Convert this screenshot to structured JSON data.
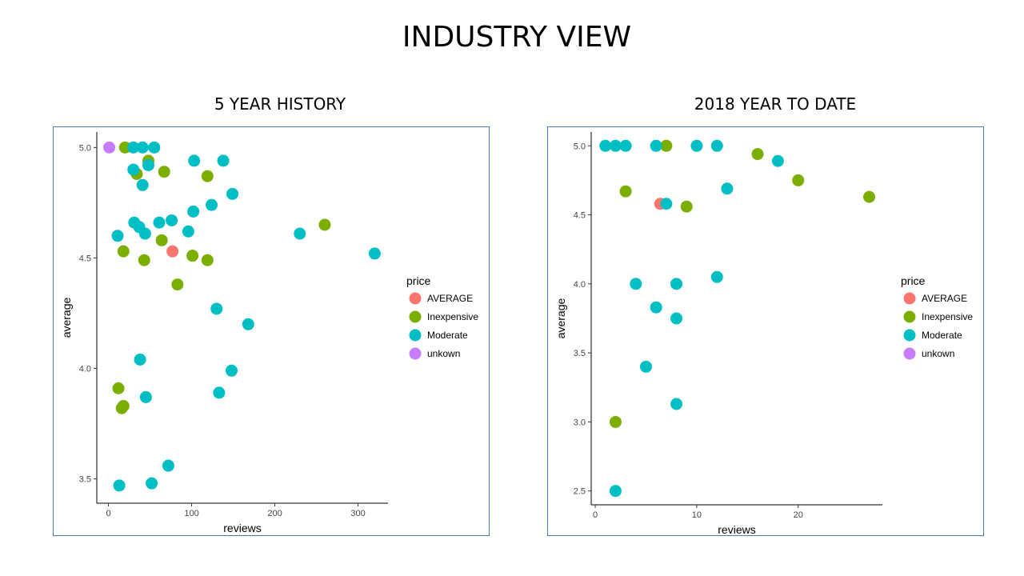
{
  "page": {
    "title": "INDUSTRY VIEW"
  },
  "colors": {
    "AVERAGE": "#f8766d",
    "Inexpensive": "#7cae00",
    "Moderate": "#00bfc4",
    "unkown": "#c77cff"
  },
  "chart_data": [
    {
      "type": "scatter",
      "title": "5 YEAR HISTORY",
      "xlabel": "reviews",
      "ylabel": "average",
      "xlim": [
        -14,
        336
      ],
      "ylim": [
        3.39,
        5.07
      ],
      "xticks": [
        "0",
        "100",
        "200",
        "300"
      ],
      "xtick_values": [
        0,
        100,
        200,
        300
      ],
      "yticks": [
        "3.5",
        "4.0",
        "4.5",
        "5.0"
      ],
      "ytick_values": [
        3.5,
        4.0,
        4.5,
        5.0
      ],
      "grid": false,
      "legend": {
        "title": "price",
        "position": "right",
        "entries": [
          "AVERAGE",
          "Inexpensive",
          "Moderate",
          "unkown"
        ]
      },
      "series": [
        {
          "name": "AVERAGE",
          "points": [
            [
              77,
              4.53
            ]
          ]
        },
        {
          "name": "Inexpensive",
          "points": [
            [
              20,
              5.0
            ],
            [
              48,
              4.94
            ],
            [
              34,
              4.88
            ],
            [
              67,
              4.89
            ],
            [
              119,
              4.87
            ],
            [
              260,
              4.65
            ],
            [
              64,
              4.58
            ],
            [
              18,
              4.53
            ],
            [
              43,
              4.49
            ],
            [
              101,
              4.51
            ],
            [
              119,
              4.49
            ],
            [
              83,
              4.38
            ],
            [
              12,
              3.91
            ],
            [
              18,
              3.83
            ],
            [
              16,
              3.82
            ]
          ]
        },
        {
          "name": "Moderate",
          "points": [
            [
              30,
              5.0
            ],
            [
              41,
              5.0
            ],
            [
              55,
              5.0
            ],
            [
              30,
              4.9
            ],
            [
              48,
              4.92
            ],
            [
              103,
              4.94
            ],
            [
              138,
              4.94
            ],
            [
              41,
              4.83
            ],
            [
              149,
              4.79
            ],
            [
              124,
              4.74
            ],
            [
              102,
              4.71
            ],
            [
              31,
              4.66
            ],
            [
              61,
              4.66
            ],
            [
              76,
              4.67
            ],
            [
              37,
              4.64
            ],
            [
              44,
              4.61
            ],
            [
              96,
              4.62
            ],
            [
              11,
              4.6
            ],
            [
              230,
              4.61
            ],
            [
              320,
              4.52
            ],
            [
              130,
              4.27
            ],
            [
              168,
              4.2
            ],
            [
              38,
              4.04
            ],
            [
              148,
              3.99
            ],
            [
              133,
              3.89
            ],
            [
              45,
              3.87
            ],
            [
              72,
              3.56
            ],
            [
              13,
              3.47
            ],
            [
              52,
              3.48
            ]
          ]
        },
        {
          "name": "unkown",
          "points": [
            [
              1,
              5.0
            ]
          ]
        }
      ]
    },
    {
      "type": "scatter",
      "title": "2018 YEAR TO DATE",
      "xlabel": "reviews",
      "ylabel": "average",
      "xlim": [
        -0.4,
        28.3
      ],
      "ylim": [
        2.4,
        5.1
      ],
      "xticks": [
        "0",
        "10",
        "20"
      ],
      "xtick_values": [
        0,
        10,
        20
      ],
      "yticks": [
        "2.5",
        "3.0",
        "3.5",
        "4.0",
        "4.5",
        "5.0"
      ],
      "ytick_values": [
        2.5,
        3.0,
        3.5,
        4.0,
        4.5,
        5.0
      ],
      "grid": false,
      "legend": {
        "title": "price",
        "position": "right",
        "entries": [
          "AVERAGE",
          "Inexpensive",
          "Moderate",
          "unkown"
        ]
      },
      "series": [
        {
          "name": "AVERAGE",
          "points": [
            [
              6.4,
              4.58
            ]
          ]
        },
        {
          "name": "Inexpensive",
          "points": [
            [
              7,
              5.0
            ],
            [
              16,
              4.94
            ],
            [
              20,
              4.75
            ],
            [
              27,
              4.63
            ],
            [
              3,
              4.67
            ],
            [
              9,
              4.56
            ],
            [
              2,
              3.0
            ]
          ]
        },
        {
          "name": "Moderate",
          "points": [
            [
              1,
              5.0
            ],
            [
              2,
              5.0
            ],
            [
              3,
              5.0
            ],
            [
              6,
              5.0
            ],
            [
              10,
              5.0
            ],
            [
              12,
              5.0
            ],
            [
              18,
              4.89
            ],
            [
              13,
              4.69
            ],
            [
              7,
              4.58
            ],
            [
              4,
              4.0
            ],
            [
              8,
              4.0
            ],
            [
              12,
              4.05
            ],
            [
              6,
              3.83
            ],
            [
              8,
              3.75
            ],
            [
              5,
              3.4
            ],
            [
              8,
              3.13
            ],
            [
              2,
              2.5
            ]
          ]
        }
      ]
    }
  ]
}
